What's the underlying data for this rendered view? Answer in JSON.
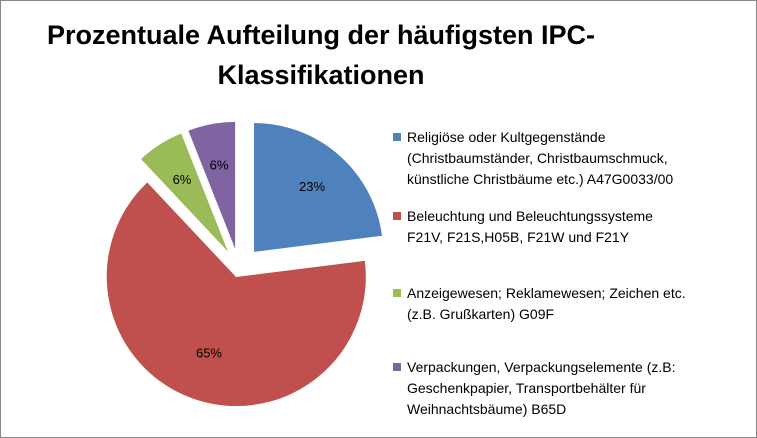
{
  "title_lines": [
    "Prozentuale Aufteilung der häufigsten IPC-",
    "Klassifikationen"
  ],
  "chart_data": {
    "type": "pie",
    "title": "Prozentuale Aufteilung der häufigsten IPC-Klassifikationen",
    "exploded": true,
    "slices": [
      {
        "label": "Religiöse oder Kultgegenstände (Christbaumständer, Christbaumschmuck, künstliche Christbäume etc.) A47G0033/00",
        "label_lines": [
          "Religiöse oder Kultgegenstände",
          "(Christbaumständer, Christbaumschmuck,",
          "künstliche Christbäume etc.) A47G0033/00"
        ],
        "value": 23,
        "value_label": "23%",
        "color": "#4f81bd"
      },
      {
        "label": "Beleuchtung und Beleuchtungssysteme F21V, F21S,H05B, F21W und F21Y",
        "label_lines": [
          "Beleuchtung  und Beleuchtungssysteme",
          "F21V, F21S,H05B, F21W und F21Y"
        ],
        "value": 65,
        "value_label": "65%",
        "color": "#c0504d"
      },
      {
        "label": "Anzeigewesen; Reklamewesen; Zeichen etc. (z.B. Grußkarten) G09F",
        "label_lines": [
          "Anzeigewesen; Reklamewesen; Zeichen etc.",
          "(z.B. Grußkarten) G09F"
        ],
        "value": 6,
        "value_label": "6%",
        "color": "#9bbb59"
      },
      {
        "label": "Verpackungen, Verpackungselemente (z.B: Geschenkpapier, Transportbehälter für Weihnachtsbäume) B65D",
        "label_lines": [
          "Verpackungen, Verpackungselemente (z.B:",
          "Geschenkpapier, Transportbehälter für",
          "Weihnachtsbäume) B65D"
        ],
        "value": 6,
        "value_label": "6%",
        "color": "#8064a2"
      }
    ]
  }
}
